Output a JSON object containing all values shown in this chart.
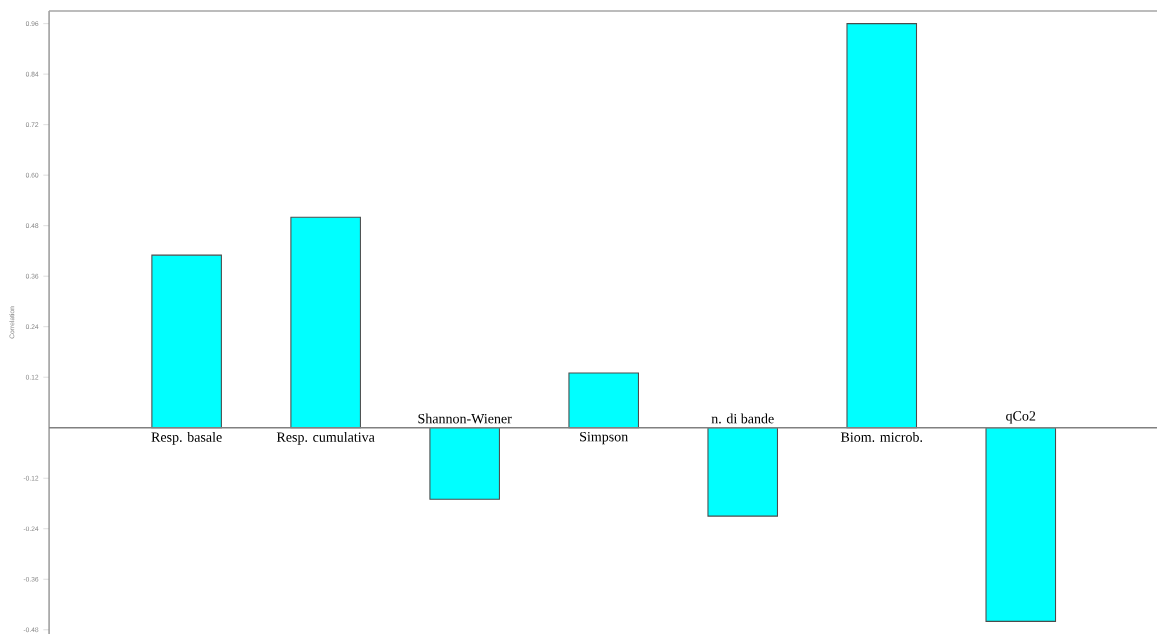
{
  "chart_data": {
    "type": "bar",
    "ylabel": "Correlation",
    "categories": [
      "Resp. basale",
      "Resp. cumulativa",
      "Shannon-Wiener",
      "Simpson",
      "n. di bande",
      "Biom. microb.",
      "qCo2"
    ],
    "values": [
      0.41,
      0.5,
      -0.17,
      0.13,
      -0.21,
      0.96,
      -0.46
    ],
    "color": "#00ffff",
    "ylim": [
      -0.49,
      0.99
    ],
    "yticks": [
      -0.48,
      -0.36,
      -0.24,
      -0.12,
      0.12,
      0.24,
      0.36,
      0.48,
      {
        "value": 0.6,
        "label": "0.60"
      },
      0.72,
      0.84,
      0.96
    ]
  }
}
